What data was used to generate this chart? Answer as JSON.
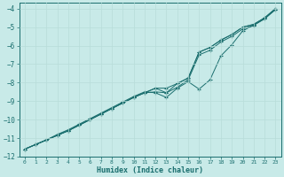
{
  "xlabel": "Humidex (Indice chaleur)",
  "bg_color": "#c8eae8",
  "grid_color": "#b8ddd9",
  "line_color": "#1a6e6e",
  "xlim": [
    -0.5,
    23.5
  ],
  "ylim": [
    -12.0,
    -3.7
  ],
  "xticks": [
    0,
    1,
    2,
    3,
    4,
    5,
    6,
    7,
    8,
    9,
    10,
    11,
    12,
    13,
    14,
    15,
    16,
    17,
    18,
    19,
    20,
    21,
    22,
    23
  ],
  "yticks": [
    -12,
    -11,
    -10,
    -9,
    -8,
    -7,
    -6,
    -5,
    -4
  ],
  "line1_x": [
    0,
    1,
    2,
    3,
    4,
    5,
    6,
    7,
    8,
    9,
    10,
    11,
    12,
    13,
    14,
    15,
    16,
    17,
    18,
    19,
    20,
    21,
    22,
    23
  ],
  "line1_y": [
    -11.6,
    -11.35,
    -11.1,
    -10.8,
    -10.55,
    -10.25,
    -9.95,
    -9.65,
    -9.35,
    -9.05,
    -8.75,
    -8.5,
    -8.55,
    -8.8,
    -8.3,
    -7.95,
    -8.35,
    -7.85,
    -6.55,
    -5.95,
    -5.2,
    -4.9,
    -4.55,
    -4.05
  ],
  "line2_x": [
    0,
    1,
    2,
    3,
    4,
    5,
    6,
    7,
    8,
    9,
    10,
    11,
    12,
    13,
    14,
    15,
    16,
    17,
    18,
    19,
    20,
    21,
    22,
    23
  ],
  "line2_y": [
    -11.6,
    -11.35,
    -11.1,
    -10.85,
    -10.6,
    -10.3,
    -10.0,
    -9.7,
    -9.4,
    -9.1,
    -8.8,
    -8.55,
    -8.5,
    -8.55,
    -8.25,
    -7.85,
    -6.5,
    -6.25,
    -5.8,
    -5.5,
    -5.1,
    -4.9,
    -4.55,
    -4.05
  ],
  "line3_x": [
    0,
    1,
    2,
    3,
    4,
    5,
    6,
    7,
    8,
    9,
    10,
    11,
    12,
    13,
    14,
    15,
    16,
    17,
    18,
    19,
    20,
    21,
    22,
    23
  ],
  "line3_y": [
    -11.6,
    -11.35,
    -11.1,
    -10.85,
    -10.6,
    -10.3,
    -10.0,
    -9.7,
    -9.4,
    -9.1,
    -8.8,
    -8.55,
    -8.3,
    -8.3,
    -8.05,
    -7.75,
    -6.35,
    -6.1,
    -5.7,
    -5.4,
    -5.0,
    -4.85,
    -4.5,
    -4.0
  ],
  "line4_x": [
    0,
    1,
    2,
    3,
    4,
    5,
    6,
    7,
    8,
    9,
    10,
    11,
    12,
    13,
    14,
    15,
    16,
    17,
    18,
    19,
    20,
    21,
    22,
    23
  ],
  "line4_y": [
    -11.6,
    -11.35,
    -11.1,
    -10.85,
    -10.6,
    -10.3,
    -10.0,
    -9.7,
    -9.4,
    -9.1,
    -8.8,
    -8.55,
    -8.3,
    -8.55,
    -8.05,
    -7.75,
    -6.35,
    -6.1,
    -5.7,
    -5.4,
    -5.0,
    -4.85,
    -4.5,
    -4.0
  ]
}
